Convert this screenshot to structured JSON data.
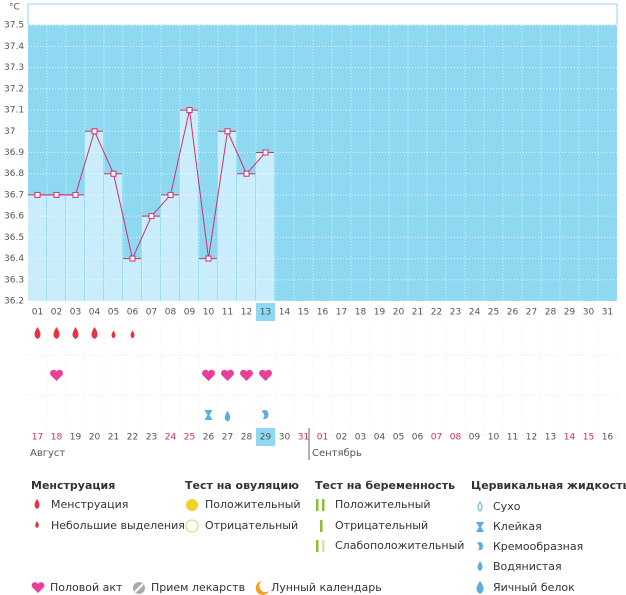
{
  "chart_data": {
    "type": "bar",
    "y_unit": "°C",
    "categories": [
      "01",
      "02",
      "03",
      "04",
      "05",
      "06",
      "07",
      "08",
      "09",
      "10",
      "11",
      "12",
      "13",
      "14",
      "15",
      "16",
      "17",
      "18",
      "19",
      "20",
      "21",
      "22",
      "23",
      "24",
      "25",
      "26",
      "27",
      "28",
      "29",
      "30",
      "31"
    ],
    "values": [
      36.7,
      36.7,
      36.7,
      37.0,
      36.8,
      36.4,
      36.6,
      36.7,
      37.1,
      36.4,
      37.0,
      36.8,
      36.9,
      null,
      null,
      null,
      null,
      null,
      null,
      null,
      null,
      null,
      null,
      null,
      null,
      null,
      null,
      null,
      null,
      null,
      null
    ],
    "bar_color": "#c9edfb",
    "line_color": "#d0306a",
    "background": "#8fd8f2",
    "ylim": [
      36.2,
      37.6
    ],
    "yticks": [
      36.2,
      36.3,
      36.4,
      36.5,
      36.6,
      36.7,
      36.8,
      36.9,
      37,
      37.1,
      37.2,
      37.3,
      37.4,
      37.5
    ],
    "grid": true
  },
  "calendar": {
    "dates": [
      "17",
      "18",
      "19",
      "20",
      "21",
      "22",
      "23",
      "24",
      "25",
      "26",
      "27",
      "28",
      "29",
      "30",
      "31",
      "01",
      "02",
      "03",
      "04",
      "05",
      "06",
      "07",
      "08",
      "09",
      "10",
      "11",
      "12",
      "13",
      "14",
      "15",
      "16"
    ],
    "months": [
      "Август",
      "Сентябрь"
    ]
  },
  "legend": {
    "menstruation": {
      "title": "Менструация",
      "items": [
        "Менструация",
        "Небольшие выделения"
      ]
    },
    "ovulation_test": {
      "title": "Тест на овуляцию",
      "items": [
        "Положительный",
        "Отрицательный"
      ]
    },
    "pregnancy_test": {
      "title": "Тест на беременность",
      "items": [
        "Положительный",
        "Отрицательный",
        "Слабоположительный"
      ]
    },
    "cervical_fluid": {
      "title": "Цервикальная жидкость",
      "items": [
        "Сухо",
        "Клейкая",
        "Кремообразная",
        "Водянистая",
        "Яичный белок"
      ]
    },
    "other": [
      "Половой акт",
      "Прием лекарств",
      "Лунный календарь"
    ]
  }
}
